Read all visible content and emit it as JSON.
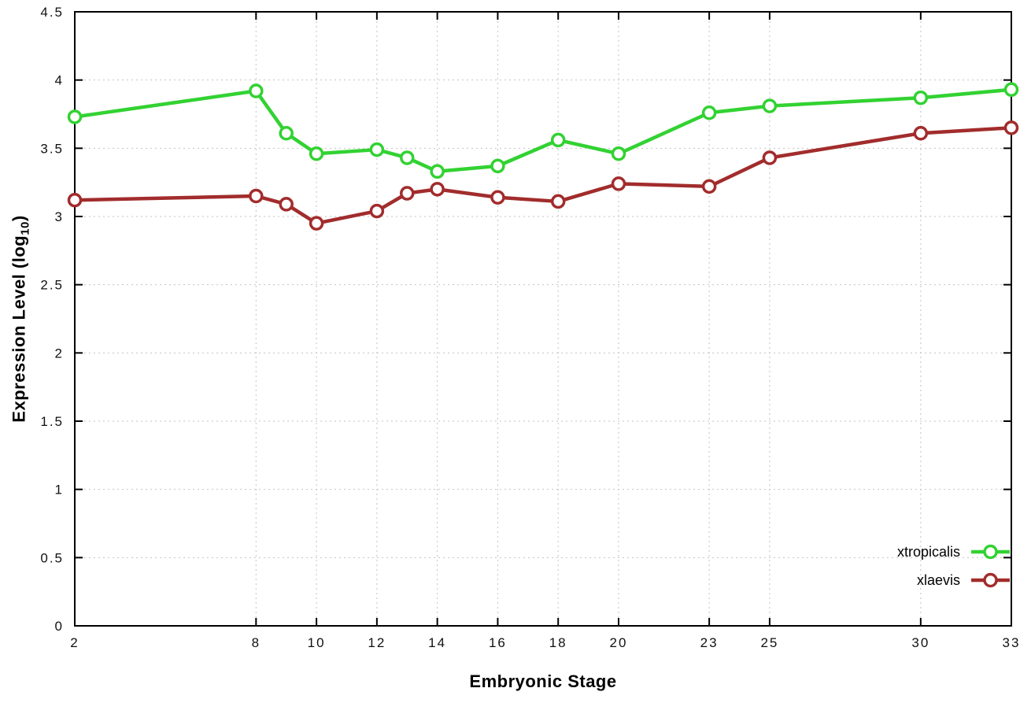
{
  "chart_data": {
    "type": "line",
    "title": "",
    "xlabel": "Embryonic Stage",
    "ylabel": "Expression Level (log10)",
    "ylabel_parts": {
      "main": "Expression Level (log",
      "sub": "10",
      "end": ")"
    },
    "xlim": [
      2,
      33
    ],
    "ylim": [
      0,
      4.5
    ],
    "x_ticks": [
      2,
      8,
      10,
      12,
      14,
      16,
      18,
      20,
      23,
      25,
      30,
      33
    ],
    "x_tick_labels": [
      "2",
      "8",
      "10",
      "12",
      "14",
      "16",
      "18",
      "20",
      "23",
      "25",
      "30",
      "33"
    ],
    "y_ticks": [
      0,
      0.5,
      1,
      1.5,
      2,
      2.5,
      3,
      3.5,
      4,
      4.5
    ],
    "y_tick_labels": [
      "0",
      "0.5",
      "1",
      "1.5",
      "2",
      "2.5",
      "3",
      "3.5",
      "4",
      "4.5"
    ],
    "grid": true,
    "legend_position": "bottom-right",
    "x": [
      2,
      8,
      9,
      10,
      12,
      13,
      14,
      16,
      18,
      20,
      23,
      25,
      30,
      33
    ],
    "series": [
      {
        "name": "xtropicalis",
        "color": "#32d232",
        "values": [
          3.73,
          3.92,
          3.61,
          3.46,
          3.49,
          3.43,
          3.33,
          3.37,
          3.56,
          3.46,
          3.76,
          3.81,
          3.87,
          3.93
        ]
      },
      {
        "name": "xlaevis",
        "color": "#a22c2c",
        "values": [
          3.12,
          3.15,
          3.09,
          2.95,
          3.04,
          3.17,
          3.2,
          3.14,
          3.11,
          3.24,
          3.22,
          3.43,
          3.61,
          3.65
        ]
      }
    ],
    "colors": {
      "grid": "#c3c3c3",
      "axis": "#000000",
      "tick_label": "#111111"
    }
  }
}
